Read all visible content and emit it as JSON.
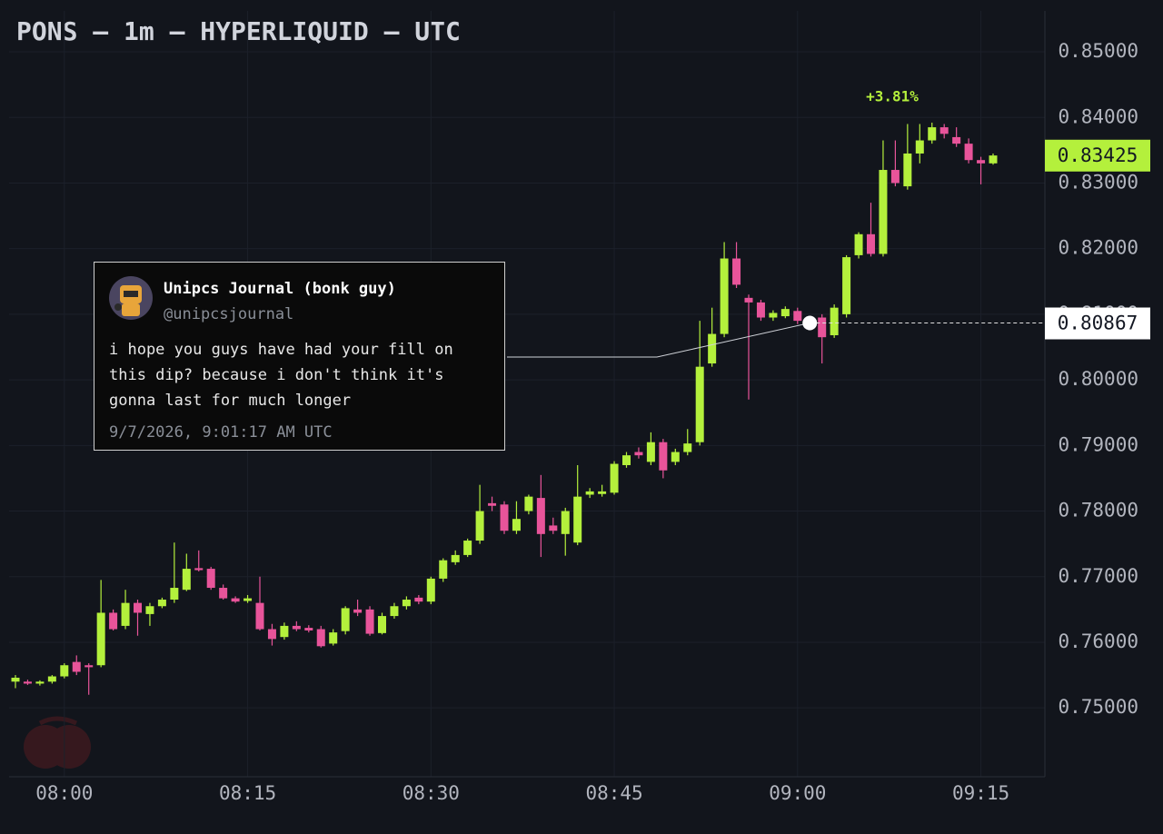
{
  "chart_data": {
    "type": "candlestick",
    "title": "PONS — 1m — HYPERLIQUID — UTC",
    "up_color": "#b4f03c",
    "down_color": "#e8549a",
    "grid": true,
    "x": [
      "07:56",
      "07:57",
      "07:58",
      "07:59",
      "08:00",
      "08:01",
      "08:02",
      "08:03",
      "08:04",
      "08:05",
      "08:06",
      "08:07",
      "08:08",
      "08:09",
      "08:10",
      "08:11",
      "08:12",
      "08:13",
      "08:14",
      "08:15",
      "08:16",
      "08:17",
      "08:18",
      "08:19",
      "08:20",
      "08:21",
      "08:22",
      "08:23",
      "08:24",
      "08:25",
      "08:26",
      "08:27",
      "08:28",
      "08:29",
      "08:30",
      "08:31",
      "08:32",
      "08:33",
      "08:34",
      "08:35",
      "08:36",
      "08:37",
      "08:38",
      "08:39",
      "08:40",
      "08:41",
      "08:42",
      "08:43",
      "08:44",
      "08:45",
      "08:46",
      "08:47",
      "08:48",
      "08:49",
      "08:50",
      "08:51",
      "08:52",
      "08:53",
      "08:54",
      "08:55",
      "08:56",
      "08:57",
      "08:58",
      "08:59",
      "09:00",
      "09:01",
      "09:02",
      "09:03",
      "09:04",
      "09:05",
      "09:06",
      "09:07",
      "09:08",
      "09:09",
      "09:10",
      "09:11",
      "09:12",
      "09:13",
      "09:14",
      "09:15",
      "09:16"
    ],
    "candles": [
      [
        0.754,
        0.755,
        0.753,
        0.7546
      ],
      [
        0.754,
        0.7543,
        0.7535,
        0.7537
      ],
      [
        0.7537,
        0.7542,
        0.7534,
        0.754
      ],
      [
        0.754,
        0.755,
        0.7537,
        0.7548
      ],
      [
        0.7548,
        0.7568,
        0.7545,
        0.7565
      ],
      [
        0.757,
        0.758,
        0.755,
        0.7555
      ],
      [
        0.7565,
        0.7568,
        0.752,
        0.7562
      ],
      [
        0.7565,
        0.7695,
        0.7562,
        0.7645
      ],
      [
        0.7645,
        0.765,
        0.7618,
        0.762
      ],
      [
        0.7625,
        0.768,
        0.762,
        0.766
      ],
      [
        0.766,
        0.7665,
        0.761,
        0.7645
      ],
      [
        0.7643,
        0.766,
        0.7625,
        0.7655
      ],
      [
        0.7655,
        0.7668,
        0.7652,
        0.7665
      ],
      [
        0.7665,
        0.7752,
        0.766,
        0.7683
      ],
      [
        0.768,
        0.7735,
        0.7678,
        0.7712
      ],
      [
        0.7713,
        0.774,
        0.7708,
        0.771
      ],
      [
        0.7712,
        0.7715,
        0.768,
        0.7683
      ],
      [
        0.7683,
        0.7688,
        0.7665,
        0.7667
      ],
      [
        0.7667,
        0.767,
        0.766,
        0.7662
      ],
      [
        0.7663,
        0.7672,
        0.766,
        0.7667
      ],
      [
        0.766,
        0.77,
        0.7618,
        0.762
      ],
      [
        0.762,
        0.7628,
        0.7595,
        0.7605
      ],
      [
        0.7608,
        0.763,
        0.7604,
        0.7625
      ],
      [
        0.7625,
        0.7632,
        0.7617,
        0.762
      ],
      [
        0.7622,
        0.7626,
        0.7615,
        0.7618
      ],
      [
        0.762,
        0.7625,
        0.7592,
        0.7594
      ],
      [
        0.7598,
        0.762,
        0.7595,
        0.7615
      ],
      [
        0.7617,
        0.7655,
        0.7612,
        0.7652
      ],
      [
        0.765,
        0.7665,
        0.764,
        0.7645
      ],
      [
        0.765,
        0.7655,
        0.761,
        0.7613
      ],
      [
        0.7614,
        0.7645,
        0.7612,
        0.764
      ],
      [
        0.764,
        0.766,
        0.7636,
        0.7655
      ],
      [
        0.7655,
        0.767,
        0.765,
        0.7665
      ],
      [
        0.7668,
        0.7672,
        0.7658,
        0.7662
      ],
      [
        0.7662,
        0.77,
        0.7658,
        0.7697
      ],
      [
        0.7697,
        0.7728,
        0.7692,
        0.7725
      ],
      [
        0.7722,
        0.774,
        0.7718,
        0.7733
      ],
      [
        0.7733,
        0.7758,
        0.773,
        0.7755
      ],
      [
        0.7755,
        0.784,
        0.775,
        0.78
      ],
      [
        0.7812,
        0.7822,
        0.78,
        0.7808
      ],
      [
        0.781,
        0.7815,
        0.7765,
        0.777
      ],
      [
        0.777,
        0.7815,
        0.7765,
        0.7788
      ],
      [
        0.78,
        0.7825,
        0.7795,
        0.7822
      ],
      [
        0.782,
        0.7855,
        0.773,
        0.7765
      ],
      [
        0.7778,
        0.779,
        0.7765,
        0.777
      ],
      [
        0.7765,
        0.7805,
        0.7732,
        0.78
      ],
      [
        0.7752,
        0.787,
        0.7748,
        0.7822
      ],
      [
        0.7825,
        0.7835,
        0.782,
        0.783
      ],
      [
        0.7826,
        0.784,
        0.7822,
        0.783
      ],
      [
        0.7828,
        0.7876,
        0.7825,
        0.7872
      ],
      [
        0.787,
        0.789,
        0.7866,
        0.7885
      ],
      [
        0.789,
        0.7897,
        0.788,
        0.7885
      ],
      [
        0.7875,
        0.792,
        0.787,
        0.7905
      ],
      [
        0.7905,
        0.791,
        0.785,
        0.7862
      ],
      [
        0.7875,
        0.7895,
        0.787,
        0.789
      ],
      [
        0.789,
        0.7925,
        0.7885,
        0.7903
      ],
      [
        0.7905,
        0.809,
        0.79,
        0.802
      ],
      [
        0.8025,
        0.811,
        0.802,
        0.807
      ],
      [
        0.807,
        0.821,
        0.8065,
        0.8185
      ],
      [
        0.8185,
        0.821,
        0.814,
        0.8145
      ],
      [
        0.8125,
        0.813,
        0.797,
        0.8118
      ],
      [
        0.8118,
        0.8122,
        0.809,
        0.8095
      ],
      [
        0.8095,
        0.8106,
        0.809,
        0.8102
      ],
      [
        0.8097,
        0.8112,
        0.8094,
        0.8108
      ],
      [
        0.8105,
        0.811,
        0.8085,
        0.809
      ],
      [
        0.809,
        0.8095,
        0.808,
        0.8087
      ],
      [
        0.8095,
        0.81,
        0.8025,
        0.8065
      ],
      [
        0.8068,
        0.8115,
        0.8064,
        0.811
      ],
      [
        0.81,
        0.819,
        0.8095,
        0.8187
      ],
      [
        0.819,
        0.8225,
        0.8185,
        0.8222
      ],
      [
        0.8222,
        0.827,
        0.8188,
        0.8192
      ],
      [
        0.8192,
        0.8365,
        0.8188,
        0.832
      ],
      [
        0.832,
        0.8365,
        0.8295,
        0.83
      ],
      [
        0.8295,
        0.839,
        0.829,
        0.8345
      ],
      [
        0.8345,
        0.839,
        0.833,
        0.8365
      ],
      [
        0.8365,
        0.8392,
        0.836,
        0.8385
      ],
      [
        0.8385,
        0.839,
        0.8368,
        0.8375
      ],
      [
        0.837,
        0.8385,
        0.8355,
        0.836
      ],
      [
        0.836,
        0.8368,
        0.833,
        0.8335
      ],
      [
        0.8335,
        0.834,
        0.8298,
        0.833
      ],
      [
        0.833,
        0.8345,
        0.8328,
        0.8342
      ]
    ],
    "ylim": [
      0.7395,
      0.8579
    ],
    "yticks": [
      {
        "value": 0.75,
        "label": "0.75000"
      },
      {
        "value": 0.76,
        "label": "0.76000"
      },
      {
        "value": 0.77,
        "label": "0.77000"
      },
      {
        "value": 0.78,
        "label": "0.78000"
      },
      {
        "value": 0.79,
        "label": "0.79000"
      },
      {
        "value": 0.8,
        "label": "0.80000"
      },
      {
        "value": 0.81,
        "label": "0.81000"
      },
      {
        "value": 0.82,
        "label": "0.82000"
      },
      {
        "value": 0.83,
        "label": "0.83000"
      },
      {
        "value": 0.84,
        "label": "0.84000"
      },
      {
        "value": 0.85,
        "label": "0.85000"
      }
    ],
    "xticks": [
      "08:00",
      "08:15",
      "08:30",
      "08:45",
      "09:00",
      "09:15"
    ],
    "last_price": {
      "value": 0.83425,
      "label": "0.83425"
    },
    "change_annotation": "+3.81%",
    "tweet_marker": {
      "time": "09:01",
      "price": {
        "value": 0.80867,
        "label": "0.80867"
      }
    },
    "tweet": {
      "author": "Unipcs Journal (bonk guy)",
      "handle": "@unipcsjournal",
      "text": "i hope you guys have had your fill on this dip? because i don't think it's gonna last for much longer",
      "timestamp": "9/7/2026, 9:01:17 AM UTC"
    }
  }
}
